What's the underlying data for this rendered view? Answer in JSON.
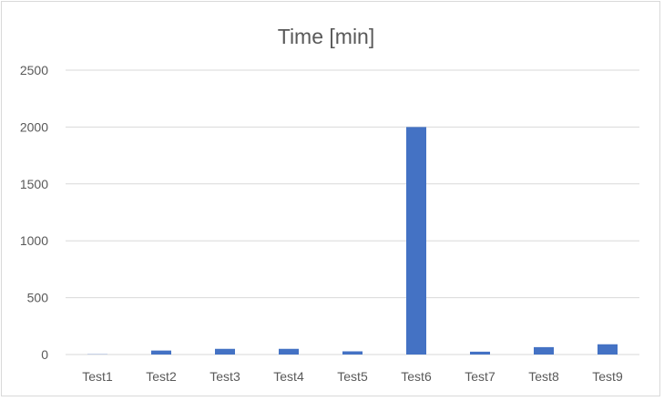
{
  "chart_data": {
    "type": "bar",
    "title": "Time [min]",
    "xlabel": "",
    "ylabel": "",
    "categories": [
      "Test1",
      "Test2",
      "Test3",
      "Test4",
      "Test5",
      "Test6",
      "Test7",
      "Test8",
      "Test9"
    ],
    "values": [
      2,
      35,
      50,
      50,
      28,
      2000,
      25,
      65,
      90
    ],
    "ylim": [
      0,
      2500
    ],
    "yticks": [
      0,
      500,
      1000,
      1500,
      2000,
      2500
    ],
    "grid": true,
    "legend": "none",
    "bar_color": "#4472c4",
    "grid_color": "#d9d9d9"
  }
}
